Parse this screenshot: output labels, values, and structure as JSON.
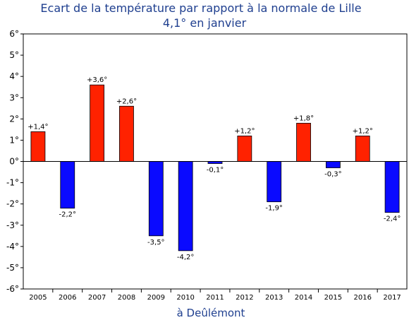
{
  "chart_data": {
    "type": "bar",
    "title": "Ecart de la température par rapport à la normale de Lille",
    "subtitle": "4,1° en janvier",
    "xlabel": "à Deûlémont",
    "ylabel": "",
    "ylim": [
      -6,
      6
    ],
    "ytick_labels": [
      "6°",
      "5°",
      "4°",
      "3°",
      "2°",
      "1°",
      "0°",
      "-1°",
      "-2°",
      "-3°",
      "-4°",
      "-5°",
      "-6°"
    ],
    "categories": [
      "2005",
      "2006",
      "2007",
      "2008",
      "2009",
      "2010",
      "2011",
      "2012",
      "2013",
      "2014",
      "2015",
      "2016",
      "2017"
    ],
    "values": [
      1.4,
      -2.2,
      3.6,
      2.6,
      -3.5,
      -4.2,
      -0.1,
      1.2,
      -1.9,
      1.8,
      -0.3,
      1.2,
      -2.4
    ],
    "data_labels": [
      "+1,4°",
      "-2,2°",
      "+3,6°",
      "+2,6°",
      "-3,5°",
      "-4,2°",
      "-0,1°",
      "+1,2°",
      "-1,9°",
      "+1,8°",
      "-0,3°",
      "+1,2°",
      "-2,4°"
    ],
    "colors": {
      "positive": "#ff2200",
      "negative": "#0a0aff",
      "title": "#1f3f8f"
    },
    "grid": false,
    "legend": "none"
  }
}
